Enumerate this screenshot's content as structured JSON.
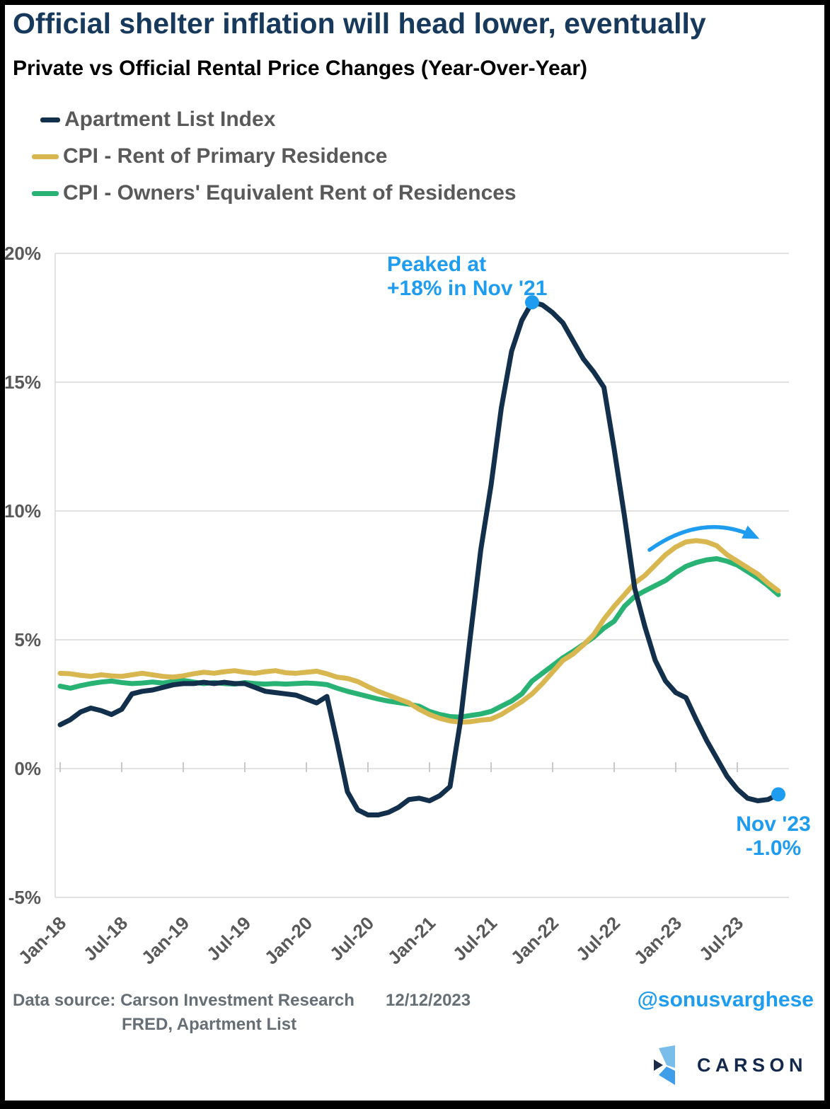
{
  "header": {
    "title": "Official shelter inflation will head lower, eventually",
    "subtitle": "Private vs Official Rental Price Changes (Year-Over-Year)"
  },
  "chart_data": {
    "type": "line",
    "title": "Private vs Official Rental Price Changes (Year-Over-Year)",
    "x_unit": "month",
    "x_start": "Jan-18",
    "x_end": "Nov-23",
    "x_tick_interval_months": 6,
    "x_tick_labels": [
      "Jan-18",
      "Jul-18",
      "Jan-19",
      "Jul-19",
      "Jan-20",
      "Jul-20",
      "Jan-21",
      "Jul-21",
      "Jan-22",
      "Jul-22",
      "Jan-23",
      "Jul-23"
    ],
    "y_axis": {
      "min": -5,
      "max": 20,
      "tick_step": 5,
      "tick_labels": [
        "20%",
        "15%",
        "10%",
        "5%",
        "0%",
        "-5%"
      ]
    },
    "grid": true,
    "legend_position": "top-left",
    "colors": {
      "grid": "#d9d9d9",
      "axis_text": "#595959"
    },
    "series": [
      {
        "id": "apartment_list",
        "name": "Apartment List Index",
        "color": "#12304b",
        "values": [
          1.7,
          1.9,
          2.2,
          2.35,
          2.25,
          2.1,
          2.3,
          2.9,
          3.0,
          3.05,
          3.15,
          3.25,
          3.3,
          3.3,
          3.35,
          3.3,
          3.35,
          3.3,
          3.3,
          3.15,
          3.0,
          2.95,
          2.9,
          2.85,
          2.7,
          2.55,
          2.8,
          1.0,
          -0.9,
          -1.6,
          -1.8,
          -1.8,
          -1.7,
          -1.5,
          -1.2,
          -1.15,
          -1.25,
          -1.05,
          -0.7,
          1.8,
          5.2,
          8.5,
          11.0,
          14.0,
          16.2,
          17.4,
          18.1,
          18.0,
          17.7,
          17.3,
          16.6,
          15.9,
          15.4,
          14.8,
          12.4,
          9.8,
          7.0,
          5.5,
          4.2,
          3.4,
          2.95,
          2.75,
          1.9,
          1.1,
          0.4,
          -0.3,
          -0.8,
          -1.15,
          -1.25,
          -1.2,
          -1.0
        ]
      },
      {
        "id": "cpi_rent",
        "name": "CPI - Rent of Primary Residence",
        "color": "#d9b750",
        "values": [
          3.7,
          3.68,
          3.62,
          3.58,
          3.64,
          3.6,
          3.58,
          3.64,
          3.7,
          3.64,
          3.58,
          3.55,
          3.6,
          3.68,
          3.74,
          3.7,
          3.76,
          3.8,
          3.74,
          3.7,
          3.76,
          3.8,
          3.72,
          3.7,
          3.74,
          3.78,
          3.68,
          3.55,
          3.5,
          3.38,
          3.18,
          3.0,
          2.85,
          2.7,
          2.55,
          2.3,
          2.1,
          1.95,
          1.85,
          1.8,
          1.82,
          1.88,
          1.92,
          2.1,
          2.35,
          2.6,
          2.9,
          3.3,
          3.75,
          4.2,
          4.45,
          4.8,
          5.2,
          5.8,
          6.3,
          6.75,
          7.2,
          7.5,
          7.9,
          8.3,
          8.6,
          8.8,
          8.85,
          8.8,
          8.65,
          8.3,
          8.05,
          7.8,
          7.55,
          7.2,
          6.9
        ]
      },
      {
        "id": "cpi_oer",
        "name": "CPI - Owners' Equivalent Rent of Residences",
        "color": "#28b274",
        "values": [
          3.2,
          3.12,
          3.22,
          3.3,
          3.36,
          3.4,
          3.34,
          3.3,
          3.32,
          3.36,
          3.32,
          3.38,
          3.42,
          3.36,
          3.3,
          3.34,
          3.3,
          3.28,
          3.34,
          3.3,
          3.28,
          3.3,
          3.28,
          3.3,
          3.32,
          3.3,
          3.26,
          3.12,
          3.0,
          2.9,
          2.8,
          2.7,
          2.62,
          2.56,
          2.5,
          2.42,
          2.22,
          2.1,
          2.02,
          2.0,
          2.06,
          2.12,
          2.22,
          2.42,
          2.62,
          2.9,
          3.4,
          3.7,
          4.0,
          4.3,
          4.55,
          4.82,
          5.1,
          5.45,
          5.72,
          6.3,
          6.68,
          6.9,
          7.1,
          7.3,
          7.6,
          7.85,
          8.0,
          8.1,
          8.15,
          8.05,
          7.9,
          7.65,
          7.4,
          7.1,
          6.75
        ]
      }
    ],
    "annotations": {
      "peak": {
        "line1": "Peaked at",
        "line2": "+18% in Nov '21",
        "series": "apartment_list",
        "month_index": 46,
        "value": 18.1,
        "color": "#1e9cf0"
      },
      "end": {
        "line1": "Nov '23",
        "line2": "-1.0%",
        "series": "apartment_list",
        "month_index": 70,
        "value": -1.0,
        "color": "#1e9cf0"
      },
      "cpi_peak_arrow": {
        "shape": "curved-arrow",
        "color": "#1e9cf0"
      }
    }
  },
  "footer": {
    "source_label": "Data source:",
    "source_value": "Carson Investment Research",
    "source_value2": "FRED, Apartment List",
    "date": "12/12/2023",
    "handle": "@sonusvarghese",
    "handle_color": "#1e9cf0",
    "logo_text": "CARSON",
    "logo_colors": {
      "light": "#7abcea",
      "mid": "#3f9de9",
      "dark": "#1b2b4a"
    }
  }
}
